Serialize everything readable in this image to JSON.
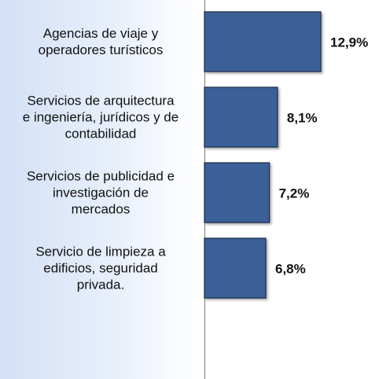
{
  "chart_data": {
    "type": "bar",
    "categories": [
      "Agencias de viaje y\noperadores turísticos",
      "Servicios de arquitectura\ne ingeniería, jurídicos y de\ncontabilidad",
      "Servicios de publicidad e\ninvestigación de\nmercados",
      "Servicio de limpieza a\nedificios, seguridad\nprivada."
    ],
    "values": [
      12.9,
      8.1,
      7.2,
      6.8
    ],
    "value_labels": [
      "12,9%",
      "8,1%",
      "7,2%",
      "6,8%"
    ],
    "color": "#3b5f97"
  }
}
